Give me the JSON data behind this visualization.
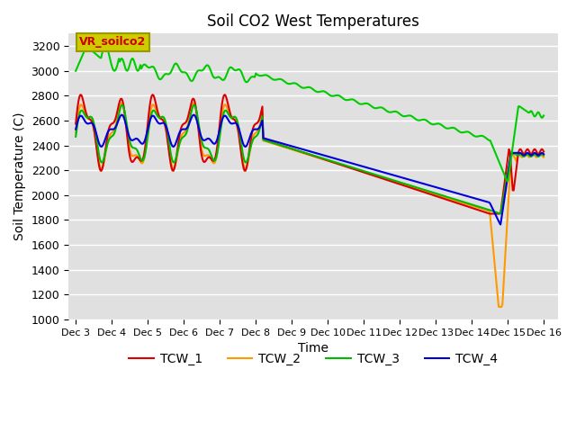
{
  "title": "Soil CO2 West Temperatures",
  "xlabel": "Time",
  "ylabel": "Soil Temperature (C)",
  "ylim": [
    1000,
    3300
  ],
  "yticks": [
    1000,
    1200,
    1400,
    1600,
    1800,
    2000,
    2200,
    2400,
    2600,
    2800,
    3000,
    3200
  ],
  "xlim": [
    -0.2,
    13.4
  ],
  "xtick_positions": [
    0,
    1,
    2,
    3,
    4,
    5,
    6,
    7,
    8,
    9,
    10,
    11,
    12,
    13
  ],
  "xtick_labels": [
    "Dec 3",
    "Dec 4",
    "Dec 5",
    "Dec 6",
    "Dec 7",
    "Dec 8",
    "Dec 9",
    "Dec 10",
    "Dec 11",
    "Dec 12",
    "Dec 13",
    "Dec 14",
    "Dec 15",
    "Dec 16"
  ],
  "bg_color": "#e0e0e0",
  "colors": {
    "VR_soilco2": "#00cc00",
    "TCW_1": "#dd0000",
    "TCW_2": "#ff9900",
    "TCW_3": "#00bb00",
    "TCW_4": "#0000dd"
  },
  "linewidth": 1.5,
  "legend_box_label": "VR_soilco2",
  "legend_box_facecolor": "#cccc00",
  "legend_box_edgecolor": "#999900",
  "legend_box_text_color": "#cc0000"
}
